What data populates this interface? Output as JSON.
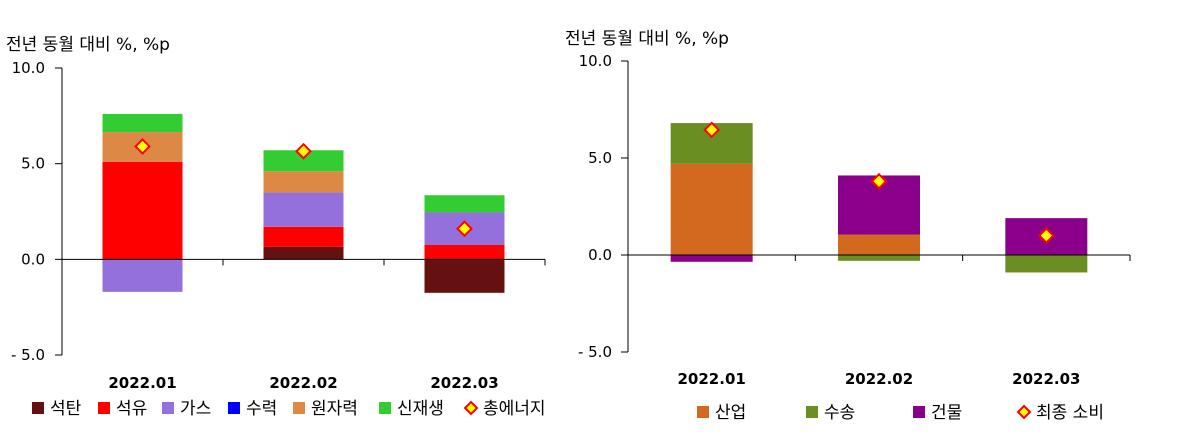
{
  "colors": {
    "coal": "#661111",
    "oil": "#ff0000",
    "gas": "#9370db",
    "hydro": "#0000ff",
    "nuclear": "#dd8844",
    "renewable": "#33cc33",
    "industry": "#d2691e",
    "transport": "#6b8e23",
    "building": "#8b008b",
    "marker_fill": "#ffff00",
    "marker_stroke": "#ff0000",
    "axis": "#000000"
  },
  "chart_data": [
    {
      "type": "bar",
      "stacked": true,
      "ylabel": "전년 동월 대비 %, %p",
      "ylim": [
        -5,
        10
      ],
      "yticks": [
        "10.0",
        "5.0",
        "0.0",
        "- 5.0"
      ],
      "ytick_values": [
        10,
        5,
        0,
        -5
      ],
      "categories": [
        "2022.01",
        "2022.02",
        "2022.03"
      ],
      "legend_position": "bottom",
      "series": [
        {
          "name": "석탄",
          "key": "coal",
          "values": [
            0.0,
            0.65,
            -1.75
          ]
        },
        {
          "name": "석유",
          "key": "oil",
          "values": [
            5.1,
            1.05,
            0.75
          ]
        },
        {
          "name": "가스",
          "key": "gas",
          "values": [
            -1.7,
            1.8,
            1.7
          ]
        },
        {
          "name": "수력",
          "key": "hydro",
          "values": [
            0.0,
            0.0,
            0.0
          ]
        },
        {
          "name": "원자력",
          "key": "nuclear",
          "values": [
            1.55,
            1.1,
            0.0
          ]
        },
        {
          "name": "신재생",
          "key": "renewable",
          "values": [
            0.95,
            1.1,
            0.9
          ]
        }
      ],
      "total": {
        "name": "총에너지",
        "values": [
          5.9,
          5.65,
          1.6
        ]
      }
    },
    {
      "type": "bar",
      "stacked": true,
      "ylabel": "전년 동월 대비 %, %p",
      "ylim": [
        -5,
        10
      ],
      "yticks": [
        "10.0",
        "5.0",
        "0.0",
        "- 5.0"
      ],
      "ytick_values": [
        10,
        5,
        0,
        -5
      ],
      "categories": [
        "2022.01",
        "2022.02",
        "2022.03"
      ],
      "legend_position": "bottom",
      "series": [
        {
          "name": "산업",
          "key": "industry",
          "values": [
            4.7,
            1.05,
            0.0
          ]
        },
        {
          "name": "수송",
          "key": "transport",
          "values": [
            2.1,
            -0.3,
            -0.9
          ]
        },
        {
          "name": "건물",
          "key": "building",
          "values": [
            -0.35,
            3.05,
            1.9
          ]
        }
      ],
      "total": {
        "name": "최종 소비",
        "values": [
          6.45,
          3.8,
          1.0
        ]
      }
    }
  ]
}
